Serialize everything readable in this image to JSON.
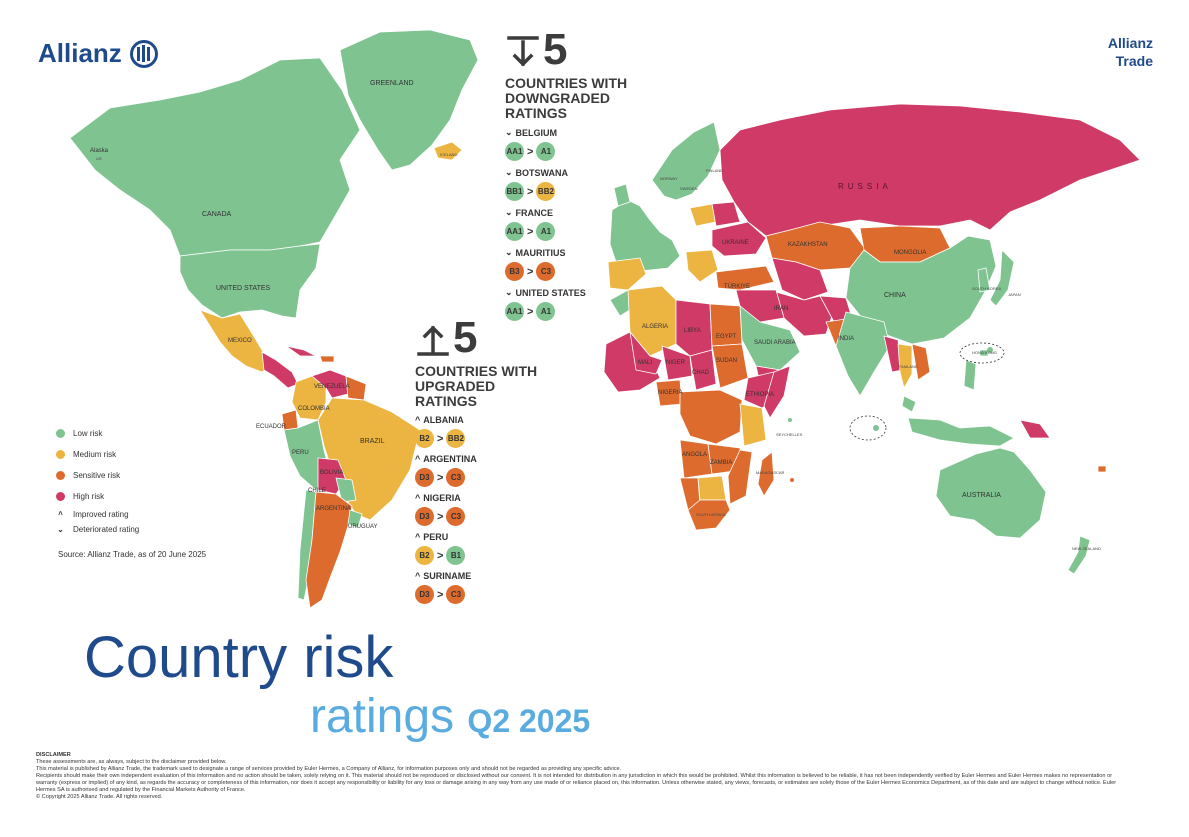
{
  "brand": {
    "logo_text": "Allianz",
    "trade_line1": "Allianz",
    "trade_line2": "Trade"
  },
  "colors": {
    "low": "#7fc391",
    "medium": "#ecb441",
    "sensitive": "#de6b2e",
    "high": "#cf3a66",
    "brand_blue": "#1f4a8c",
    "light_blue": "#5aace0"
  },
  "downgrades": {
    "count": "5",
    "title_l1": "COUNTRIES WITH",
    "title_l2": "DOWNGRADED",
    "title_l3": "RATINGS",
    "items": [
      {
        "name": "BELGIUM",
        "from": "AA1",
        "to": "A1",
        "from_risk": "low",
        "to_risk": "low"
      },
      {
        "name": "BOTSWANA",
        "from": "BB1",
        "to": "BB2",
        "from_risk": "low",
        "to_risk": "medium"
      },
      {
        "name": "FRANCE",
        "from": "AA1",
        "to": "A1",
        "from_risk": "low",
        "to_risk": "low"
      },
      {
        "name": "MAURITIUS",
        "from": "B3",
        "to": "C3",
        "from_risk": "sensitive",
        "to_risk": "sensitive"
      },
      {
        "name": "UNITED STATES",
        "from": "AA1",
        "to": "A1",
        "from_risk": "low",
        "to_risk": "low"
      }
    ]
  },
  "upgrades": {
    "count": "5",
    "title_l1": "COUNTRIES WITH",
    "title_l2": "UPGRADED",
    "title_l3": "RATINGS",
    "items": [
      {
        "name": "ALBANIA",
        "from": "B2",
        "to": "BB2",
        "from_risk": "medium",
        "to_risk": "medium"
      },
      {
        "name": "ARGENTINA",
        "from": "D3",
        "to": "C3",
        "from_risk": "sensitive",
        "to_risk": "sensitive"
      },
      {
        "name": "NIGERIA",
        "from": "D3",
        "to": "C3",
        "from_risk": "sensitive",
        "to_risk": "sensitive"
      },
      {
        "name": "PERU",
        "from": "B2",
        "to": "B1",
        "from_risk": "medium",
        "to_risk": "low"
      },
      {
        "name": "SURINAME",
        "from": "D3",
        "to": "C3",
        "from_risk": "sensitive",
        "to_risk": "sensitive"
      }
    ]
  },
  "legend": {
    "low": "Low risk",
    "medium": "Medium risk",
    "sensitive": "Sensitive risk",
    "high": "High risk",
    "improved": "Improved rating",
    "deteriorated": "Deteriorated rating"
  },
  "source": "Source: Allianz Trade, as of 20 June 2025",
  "title": {
    "line1": "Country risk",
    "line2": "ratings",
    "line2_year": "Q2 2025"
  },
  "map_labels": {
    "greenland": "GREENLAND",
    "alaska": "Alaska",
    "alaska_sub": "US",
    "canada": "CANADA",
    "united_states": "UNITED STATES",
    "mexico": "MEXICO",
    "colombia": "COLOMBIA",
    "venezuela": "VENEZUELA",
    "ecuador": "ECUADOR",
    "peru": "PERU",
    "brazil": "BRAZIL",
    "bolivia": "BOLIVIA",
    "chile": "CHILE",
    "argentina": "ARGENTINA",
    "uruguay": "URUGUAY",
    "iceland": "ICELAND",
    "russia": "RUSSIA",
    "kazakhstan": "KAZAKHSTAN",
    "mongolia": "MONGOLIA",
    "china": "CHINA",
    "india": "INDIA",
    "iran": "IRAN",
    "turkiye": "TÜRKIYE",
    "algeria": "ALGERIA",
    "libya": "LIBYA",
    "egypt": "EGYPT",
    "mali": "MALI",
    "niger": "NIGER",
    "chad": "CHAD",
    "sudan": "SUDAN",
    "ethiopia": "ETHIOPIA",
    "nigeria": "NIGERIA",
    "angola": "ANGOLA",
    "zambia": "ZAMBIA",
    "south_africa": "SOUTH AFRICA",
    "australia": "AUSTRALIA",
    "japan": "JAPAN",
    "ukraine": "UKRAINE",
    "finland": "FINLAND",
    "sweden": "SWEDEN",
    "norway": "NORWAY",
    "saudi_arabia": "SAUDI ARABIA",
    "thailand": "THAILAND",
    "new_zealand": "NEW ZEALAND",
    "madagascar": "MADAGASCAR",
    "seychelles": "SEYCHELLES",
    "hong_kong": "HONG KONG",
    "south_korea": "SOUTH KOREA"
  },
  "disclaimer": {
    "heading": "DISCLAIMER",
    "line1": "These assessments are, as always, subject to the disclaimer provided below.",
    "line2": "This material is published by Allianz Trade, the trademark used to designate a range of services provided by Euler Hermes, a Company of Allianz, for information purposes only and should not be regarded as providing any specific advice.",
    "line3": "Recipients should make their own independent evaluation of this information and no action should be taken, solely relying on it. This material should not be reproduced or disclosed without our consent. It is not intended for distribution in any jurisdiction in which this would be prohibited. Whilst this information is believed to be reliable, it has not been independently verified by Euler Hermes and Euler Hermes makes no representation or warranty (express or implied) of any kind, as regards the accuracy or completeness of this information, nor does it accept any responsibility or liability for any loss or damage arising in any way from any use made of or reliance placed on, this information. Unless otherwise stated, any views, forecasts, or estimates are solely those of the Euler Hermes Economics Department, as of this date and are subject to change without notice. Euler Hermes SA is authorised and regulated by the Financial Markets Authority of France.",
    "line4": "© Copyright 2025 Allianz Trade. All rights reserved."
  }
}
